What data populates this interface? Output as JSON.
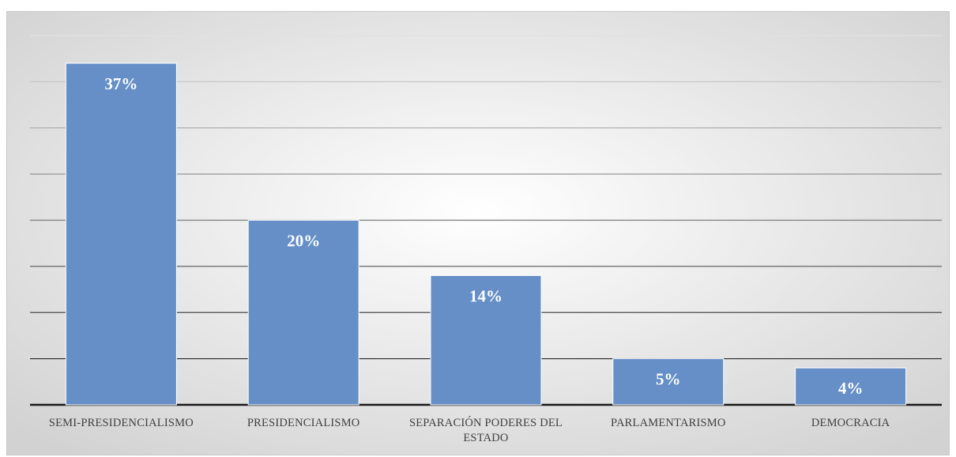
{
  "chart_data": {
    "type": "bar",
    "categories": [
      "SEMI-PRESIDENCIALISMO",
      "PRESIDENCIALISMO",
      "SEPARACIÓN PODERES DEL ESTADO",
      "PARLAMENTARISMO",
      "DEMOCRACIA"
    ],
    "values": [
      37,
      20,
      14,
      5,
      4
    ],
    "value_labels": [
      "37%",
      "20%",
      "14%",
      "5%",
      "4%"
    ],
    "color": "#658fc6",
    "ylim": [
      0,
      40
    ],
    "yticks": [
      0,
      5,
      10,
      15,
      20,
      25,
      30,
      35,
      40
    ],
    "grid": true
  }
}
